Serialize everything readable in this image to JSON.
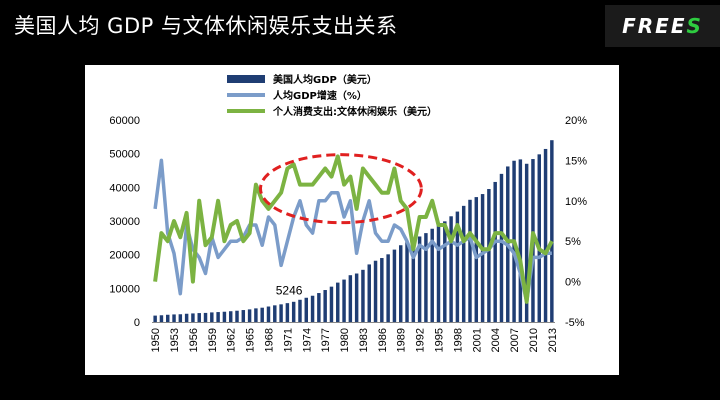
{
  "slide": {
    "title": "美国人均 GDP 与文体休闲娱乐支出关系"
  },
  "logo": {
    "text": "FREE",
    "accent": "S"
  },
  "chart_data": {
    "type": "bar+line",
    "title": "",
    "years": [
      1950,
      1951,
      1952,
      1953,
      1954,
      1955,
      1956,
      1957,
      1958,
      1959,
      1960,
      1961,
      1962,
      1963,
      1964,
      1965,
      1966,
      1967,
      1968,
      1969,
      1970,
      1971,
      1972,
      1973,
      1974,
      1975,
      1976,
      1977,
      1978,
      1979,
      1980,
      1981,
      1982,
      1983,
      1984,
      1985,
      1986,
      1987,
      1988,
      1989,
      1990,
      1991,
      1992,
      1993,
      1994,
      1995,
      1996,
      1997,
      1998,
      1999,
      2000,
      2001,
      2002,
      2003,
      2004,
      2005,
      2006,
      2007,
      2008,
      2009,
      2010,
      2011,
      2012,
      2013
    ],
    "x_tick_labels": [
      "1950",
      "1953",
      "1956",
      "1959",
      "1962",
      "1965",
      "1968",
      "1971",
      "1974",
      "1977",
      "1980",
      "1983",
      "1986",
      "1989",
      "1992",
      "1995",
      "1998",
      "2001",
      "2004",
      "2007",
      "2010",
      "2013"
    ],
    "left_axis": {
      "range": [
        0,
        60000
      ],
      "ticks": [
        "0",
        "10000",
        "20000",
        "30000",
        "40000",
        "50000",
        "60000"
      ]
    },
    "right_axis": {
      "range": [
        -5,
        20
      ],
      "ticks": [
        "-5%",
        "0%",
        "5%",
        "10%",
        "15%",
        "20%"
      ]
    },
    "series": [
      {
        "name": "美国人均GDP（美元）",
        "kind": "bar",
        "axis": "left",
        "color": "#1f3d73",
        "values": [
          1900,
          2000,
          2150,
          2250,
          2300,
          2450,
          2550,
          2650,
          2700,
          2850,
          2950,
          3050,
          3200,
          3350,
          3550,
          3750,
          4050,
          4250,
          4600,
          4950,
          5246,
          5600,
          6000,
          6600,
          7200,
          7800,
          8600,
          9500,
          10500,
          11700,
          12600,
          13900,
          14400,
          15500,
          17100,
          18200,
          19000,
          20100,
          21500,
          22800,
          23900,
          24300,
          25400,
          26400,
          27700,
          28700,
          29900,
          31400,
          32800,
          34500,
          36300,
          37100,
          38000,
          39500,
          41600,
          44000,
          46200,
          47900,
          48300,
          47000,
          48400,
          49800,
          51400,
          54000
        ]
      },
      {
        "name": "人均GDP增速（%）",
        "kind": "line",
        "axis": "right",
        "color": "#7b9cc9",
        "values": [
          9,
          15,
          6,
          3.5,
          -1.5,
          7,
          4,
          3,
          1,
          5.5,
          3,
          4,
          5,
          5,
          5.5,
          7,
          7,
          4.5,
          8,
          7,
          2,
          5,
          8,
          10,
          7,
          6,
          10,
          10,
          11,
          11,
          8,
          10,
          3.5,
          7.5,
          10,
          6,
          5,
          5,
          7,
          6.5,
          5,
          3,
          4.5,
          4,
          5,
          4,
          4.5,
          5,
          4.5,
          5,
          5.5,
          3,
          3.5,
          4,
          5,
          5,
          4.5,
          3.5,
          1,
          -2.5,
          3,
          3,
          3.5,
          3.5
        ]
      },
      {
        "name": "个人消费支出:文体休闲娱乐（美元）",
        "kind": "line",
        "axis": "right",
        "color": "#7cb342",
        "values": [
          0,
          6,
          5,
          7.5,
          5.5,
          8.5,
          0,
          10,
          4.5,
          5.5,
          10,
          5,
          7,
          7.5,
          5,
          6,
          12,
          10,
          9,
          10,
          11,
          14,
          14.5,
          12,
          12,
          12,
          13,
          14,
          13,
          15.5,
          12,
          13,
          9,
          14,
          13,
          12,
          11,
          11,
          14,
          10,
          9,
          4,
          8,
          8,
          10,
          7,
          7,
          5,
          7,
          5,
          6,
          5,
          4,
          4,
          6,
          6,
          5,
          5,
          2.5,
          -2.5,
          6,
          4,
          3.5,
          5
        ]
      }
    ],
    "annotations": [
      {
        "text": "5246",
        "year": 1970,
        "value": 5246
      }
    ],
    "highlight": {
      "shape": "dashed-ellipse",
      "color": "#e02020",
      "x_range": [
        1968,
        1991
      ]
    },
    "legend": {
      "position": "top-center"
    }
  }
}
